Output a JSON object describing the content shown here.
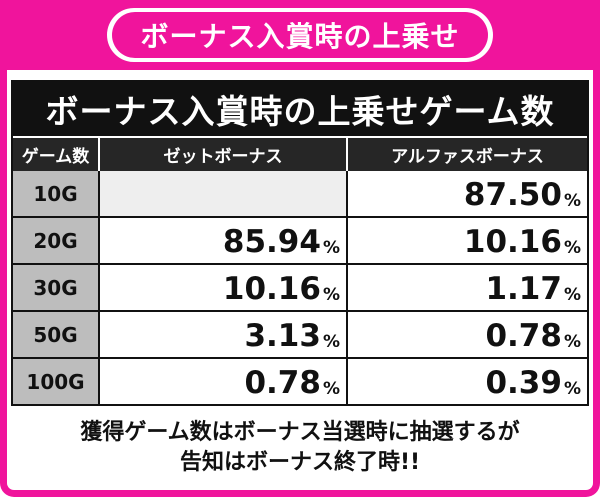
{
  "banner": {
    "title": "ボーナス入賞時の上乗せ"
  },
  "table": {
    "title": "ボーナス入賞時の上乗せゲーム数",
    "headers": [
      "ゲーム数",
      "ゼットボーナス",
      "アルファスボーナス"
    ],
    "rows": [
      {
        "label": "10G",
        "zet": "",
        "alphas": "87.50"
      },
      {
        "label": "20G",
        "zet": "85.94",
        "alphas": "10.16"
      },
      {
        "label": "30G",
        "zet": "10.16",
        "alphas": "1.17"
      },
      {
        "label": "50G",
        "zet": "3.13",
        "alphas": "0.78"
      },
      {
        "label": "100G",
        "zet": "0.78",
        "alphas": "0.39"
      }
    ],
    "percent_sign": "%"
  },
  "footnote": {
    "line1": "獲得ゲーム数はボーナス当選時に抽選するが",
    "line2": "告知はボーナス終了時!!"
  },
  "colors": {
    "accent": "#f0149c",
    "header_bg": "#111111",
    "label_bg": "#bdbdbd"
  }
}
